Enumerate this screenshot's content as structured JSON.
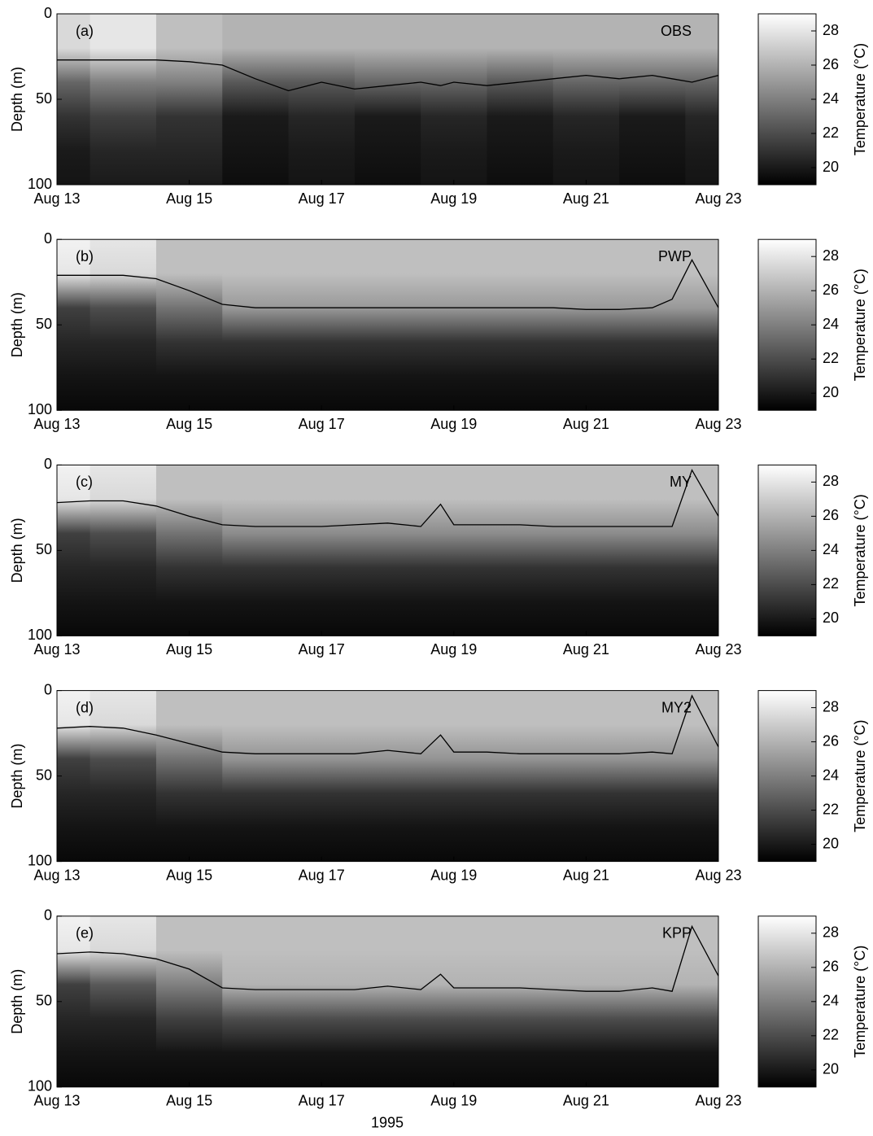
{
  "chart_data": [
    {
      "type": "heatmap",
      "label": "(a)",
      "title": "OBS",
      "ylabel": "Depth (m)",
      "clabel": "Temperature (°C)",
      "colormap": "gray",
      "xlim": [
        13,
        23
      ],
      "xticks": [
        {
          "value": 13,
          "label": "Aug 13"
        },
        {
          "value": 15,
          "label": "Aug 15"
        },
        {
          "value": 17,
          "label": "Aug 17"
        },
        {
          "value": 19,
          "label": "Aug 19"
        },
        {
          "value": 21,
          "label": "Aug 21"
        },
        {
          "value": 23,
          "label": "Aug 23"
        }
      ],
      "ylim": [
        0,
        100
      ],
      "yreversed": true,
      "yticks": [
        0,
        50,
        100
      ],
      "clim": [
        19,
        29
      ],
      "cticks": [
        20,
        22,
        24,
        26,
        28
      ],
      "x": [
        13,
        14,
        15,
        16,
        17,
        18,
        19,
        20,
        21,
        22,
        23
      ],
      "y": [
        0,
        20,
        40,
        60,
        80,
        100
      ],
      "z": [
        [
          27.5,
          28,
          26.5,
          26,
          26,
          26,
          26,
          26,
          26,
          26,
          26
        ],
        [
          27.5,
          28,
          26.5,
          26,
          26,
          26,
          26,
          26,
          26,
          26,
          26
        ],
        [
          23,
          24,
          24,
          22.5,
          22.5,
          23,
          23,
          22.5,
          23,
          23,
          23
        ],
        [
          21,
          21.5,
          21,
          20,
          20.5,
          20,
          20.5,
          20,
          20.5,
          20,
          20.5
        ],
        [
          20,
          20.5,
          20.5,
          19.8,
          20,
          19.8,
          20,
          19.8,
          20,
          19.8,
          20
        ],
        [
          19.8,
          20,
          20,
          19.5,
          19.8,
          19.5,
          19.8,
          19.5,
          19.8,
          19.5,
          19.8
        ]
      ],
      "line": {
        "color": "#000000",
        "x": [
          13,
          13.5,
          14,
          14.5,
          15,
          15.5,
          16,
          16.5,
          17,
          17.5,
          18,
          18.5,
          18.8,
          19,
          19.5,
          20,
          20.5,
          21,
          21.5,
          22,
          22.3,
          22.6,
          23
        ],
        "values": [
          27,
          27,
          27,
          27,
          28,
          30,
          38,
          45,
          40,
          44,
          42,
          40,
          42,
          40,
          42,
          40,
          38,
          36,
          38,
          36,
          38,
          40,
          36
        ]
      }
    },
    {
      "type": "heatmap",
      "label": "(b)",
      "title": "PWP",
      "ylabel": "Depth (m)",
      "clabel": "Temperature (°C)",
      "colormap": "gray",
      "xlim": [
        13,
        23
      ],
      "xticks": [
        {
          "value": 13,
          "label": "Aug 13"
        },
        {
          "value": 15,
          "label": "Aug 15"
        },
        {
          "value": 17,
          "label": "Aug 17"
        },
        {
          "value": 19,
          "label": "Aug 19"
        },
        {
          "value": 21,
          "label": "Aug 21"
        },
        {
          "value": 23,
          "label": "Aug 23"
        }
      ],
      "ylim": [
        0,
        100
      ],
      "yreversed": true,
      "yticks": [
        0,
        50,
        100
      ],
      "clim": [
        19,
        29
      ],
      "cticks": [
        20,
        22,
        24,
        26,
        28
      ],
      "x": [
        13,
        14,
        15,
        16,
        17,
        18,
        19,
        20,
        21,
        22,
        23
      ],
      "y": [
        0,
        20,
        40,
        60,
        80,
        100
      ],
      "z": [
        [
          28.5,
          28,
          26.5,
          26.5,
          26.5,
          26.5,
          26.5,
          26.5,
          26.5,
          26.5,
          26.5
        ],
        [
          28,
          27.5,
          26.5,
          26.5,
          26.5,
          26.5,
          26.5,
          26.5,
          26.5,
          26.5,
          26.5
        ],
        [
          21.5,
          22,
          23.5,
          25,
          25,
          25,
          25,
          25,
          25,
          25,
          25
        ],
        [
          20.5,
          20.5,
          21,
          21,
          21,
          21,
          21,
          21,
          21,
          21,
          21
        ],
        [
          19.8,
          19.8,
          19.8,
          19.8,
          19.8,
          19.8,
          19.8,
          19.8,
          19.8,
          19.8,
          19.8
        ],
        [
          19.3,
          19.3,
          19.3,
          19.3,
          19.3,
          19.3,
          19.3,
          19.3,
          19.3,
          19.3,
          19.3
        ]
      ],
      "line": {
        "color": "#000000",
        "x": [
          13,
          13.5,
          14,
          14.5,
          15,
          15.5,
          16,
          16.5,
          17,
          17.5,
          18,
          18.5,
          18.8,
          19,
          19.5,
          20,
          20.5,
          21,
          21.5,
          22,
          22.3,
          22.6,
          23
        ],
        "values": [
          21,
          21,
          21,
          23,
          30,
          38,
          40,
          40,
          40,
          40,
          40,
          40,
          40,
          40,
          40,
          40,
          40,
          41,
          41,
          40,
          35,
          12,
          40
        ]
      }
    },
    {
      "type": "heatmap",
      "label": "(c)",
      "title": "MY",
      "ylabel": "Depth (m)",
      "clabel": "Temperature (°C)",
      "colormap": "gray",
      "xlim": [
        13,
        23
      ],
      "xticks": [
        {
          "value": 13,
          "label": "Aug 13"
        },
        {
          "value": 15,
          "label": "Aug 15"
        },
        {
          "value": 17,
          "label": "Aug 17"
        },
        {
          "value": 19,
          "label": "Aug 19"
        },
        {
          "value": 21,
          "label": "Aug 21"
        },
        {
          "value": 23,
          "label": "Aug 23"
        }
      ],
      "ylim": [
        0,
        100
      ],
      "yreversed": true,
      "yticks": [
        0,
        50,
        100
      ],
      "clim": [
        19,
        29
      ],
      "cticks": [
        20,
        22,
        24,
        26,
        28
      ],
      "x": [
        13,
        14,
        15,
        16,
        17,
        18,
        19,
        20,
        21,
        22,
        23
      ],
      "y": [
        0,
        20,
        40,
        60,
        80,
        100
      ],
      "z": [
        [
          28.5,
          28,
          26.5,
          26.5,
          26.5,
          26.5,
          26.5,
          26.5,
          26.5,
          26.5,
          26.5
        ],
        [
          28,
          27.5,
          26.5,
          26.5,
          26.5,
          26.5,
          26.5,
          26.5,
          26.5,
          26.5,
          26.5
        ],
        [
          21.5,
          22,
          23.5,
          24.5,
          24.5,
          24.5,
          24.5,
          24.5,
          24.5,
          24.5,
          24.5
        ],
        [
          20.5,
          20.5,
          21,
          21,
          21,
          21,
          21,
          21,
          21,
          21,
          21
        ],
        [
          19.8,
          19.8,
          19.8,
          19.8,
          19.8,
          19.8,
          19.8,
          19.8,
          19.8,
          19.8,
          19.8
        ],
        [
          19.3,
          19.3,
          19.3,
          19.3,
          19.3,
          19.3,
          19.3,
          19.3,
          19.3,
          19.3,
          19.3
        ]
      ],
      "line": {
        "color": "#000000",
        "x": [
          13,
          13.5,
          14,
          14.5,
          15,
          15.5,
          16,
          16.5,
          17,
          17.5,
          18,
          18.5,
          18.8,
          19,
          19.5,
          20,
          20.5,
          21,
          21.5,
          22,
          22.3,
          22.6,
          23
        ],
        "values": [
          22,
          21,
          21,
          24,
          30,
          35,
          36,
          36,
          36,
          35,
          34,
          36,
          23,
          35,
          35,
          35,
          36,
          36,
          36,
          36,
          36,
          3,
          30
        ]
      }
    },
    {
      "type": "heatmap",
      "label": "(d)",
      "title": "MY2",
      "ylabel": "Depth (m)",
      "clabel": "Temperature (°C)",
      "colormap": "gray",
      "xlim": [
        13,
        23
      ],
      "xticks": [
        {
          "value": 13,
          "label": "Aug 13"
        },
        {
          "value": 15,
          "label": "Aug 15"
        },
        {
          "value": 17,
          "label": "Aug 17"
        },
        {
          "value": 19,
          "label": "Aug 19"
        },
        {
          "value": 21,
          "label": "Aug 21"
        },
        {
          "value": 23,
          "label": "Aug 23"
        }
      ],
      "ylim": [
        0,
        100
      ],
      "yreversed": true,
      "yticks": [
        0,
        50,
        100
      ],
      "clim": [
        19,
        29
      ],
      "cticks": [
        20,
        22,
        24,
        26,
        28
      ],
      "x": [
        13,
        14,
        15,
        16,
        17,
        18,
        19,
        20,
        21,
        22,
        23
      ],
      "y": [
        0,
        20,
        40,
        60,
        80,
        100
      ],
      "z": [
        [
          28.5,
          28,
          26.5,
          26.5,
          26.5,
          26.5,
          26.5,
          26.5,
          26.5,
          26.5,
          26.5
        ],
        [
          28,
          27.5,
          26.5,
          26.5,
          26.5,
          26.5,
          26.5,
          26.5,
          26.5,
          26.5,
          26.5
        ],
        [
          21.5,
          22,
          23.5,
          24.8,
          24.8,
          24.8,
          24.8,
          24.8,
          24.8,
          24.8,
          24.8
        ],
        [
          20.5,
          20.5,
          21,
          21,
          21,
          21,
          21,
          21,
          21,
          21,
          21
        ],
        [
          19.8,
          19.8,
          19.8,
          19.8,
          19.8,
          19.8,
          19.8,
          19.8,
          19.8,
          19.8,
          19.8
        ],
        [
          19.3,
          19.3,
          19.3,
          19.3,
          19.3,
          19.3,
          19.3,
          19.3,
          19.3,
          19.3,
          19.3
        ]
      ],
      "line": {
        "color": "#000000",
        "x": [
          13,
          13.5,
          14,
          14.5,
          15,
          15.5,
          16,
          16.5,
          17,
          17.5,
          18,
          18.5,
          18.8,
          19,
          19.5,
          20,
          20.5,
          21,
          21.5,
          22,
          22.3,
          22.6,
          23
        ],
        "values": [
          22,
          21,
          22,
          26,
          31,
          36,
          37,
          37,
          37,
          37,
          35,
          37,
          26,
          36,
          36,
          37,
          37,
          37,
          37,
          36,
          37,
          3,
          33
        ]
      }
    },
    {
      "type": "heatmap",
      "label": "(e)",
      "title": "KPP",
      "ylabel": "Depth (m)",
      "xlabel": "1995",
      "clabel": "Temperature (°C)",
      "colormap": "gray",
      "xlim": [
        13,
        23
      ],
      "xticks": [
        {
          "value": 13,
          "label": "Aug 13"
        },
        {
          "value": 15,
          "label": "Aug 15"
        },
        {
          "value": 17,
          "label": "Aug 17"
        },
        {
          "value": 19,
          "label": "Aug 19"
        },
        {
          "value": 21,
          "label": "Aug 21"
        },
        {
          "value": 23,
          "label": "Aug 23"
        }
      ],
      "ylim": [
        0,
        100
      ],
      "yreversed": true,
      "yticks": [
        0,
        50,
        100
      ],
      "clim": [
        19,
        29
      ],
      "cticks": [
        20,
        22,
        24,
        26,
        28
      ],
      "x": [
        13,
        14,
        15,
        16,
        17,
        18,
        19,
        20,
        21,
        22,
        23
      ],
      "y": [
        0,
        20,
        40,
        60,
        80,
        100
      ],
      "z": [
        [
          28.5,
          28,
          26.5,
          26.5,
          26.5,
          26.5,
          26.5,
          26.5,
          26.5,
          26.5,
          26.5
        ],
        [
          28,
          27.5,
          26.5,
          26.5,
          26.5,
          26.5,
          26.5,
          26.5,
          26.5,
          26.5,
          26.5
        ],
        [
          21.5,
          22.5,
          24,
          26,
          26,
          26,
          26,
          26,
          26,
          26,
          26
        ],
        [
          20.5,
          20.5,
          21.5,
          22,
          22,
          22,
          22,
          22,
          22,
          22,
          22
        ],
        [
          19.8,
          19.8,
          19.8,
          19.8,
          19.8,
          19.8,
          19.8,
          19.8,
          19.8,
          19.8,
          19.8
        ],
        [
          19.3,
          19.3,
          19.3,
          19.3,
          19.3,
          19.3,
          19.3,
          19.3,
          19.3,
          19.3,
          19.3
        ]
      ],
      "line": {
        "color": "#000000",
        "x": [
          13,
          13.5,
          14,
          14.5,
          15,
          15.5,
          16,
          16.5,
          17,
          17.5,
          18,
          18.5,
          18.8,
          19,
          19.5,
          20,
          20.5,
          21,
          21.5,
          22,
          22.3,
          22.6,
          23
        ],
        "values": [
          22,
          21,
          22,
          25,
          31,
          42,
          43,
          43,
          43,
          43,
          41,
          43,
          34,
          42,
          42,
          42,
          43,
          44,
          44,
          42,
          44,
          6,
          35
        ]
      }
    }
  ]
}
